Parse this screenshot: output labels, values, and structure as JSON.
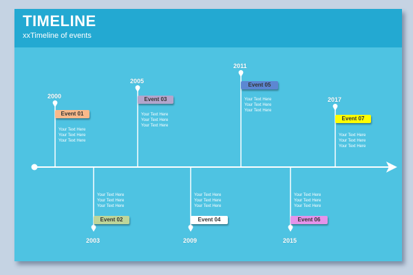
{
  "header": {
    "title": "TIMELINE",
    "subtitle": "xxTimeline of events"
  },
  "colors": {
    "slide_bg": "#4ec3e2",
    "header_bg": "#23a9d2",
    "page_bg": "#c5d3e3",
    "line": "#ffffff"
  },
  "events": [
    {
      "year": "2000",
      "label": "Event 01",
      "color": "#f9b98a",
      "text": [
        "Your Text  Here",
        "Your Text  Here",
        "Your Text  Here"
      ]
    },
    {
      "year": "2003",
      "label": "Event 02",
      "color": "#bfd69a",
      "text": [
        "Your Text  Here",
        "Your Text  Here",
        "Your Text  Here"
      ]
    },
    {
      "year": "2005",
      "label": "Event 03",
      "color": "#b3a5cc",
      "text": [
        "Your Text  Here",
        "Your Text  Here",
        "Your Text  Here"
      ]
    },
    {
      "year": "2009",
      "label": "Event 04",
      "color": "#ffffff",
      "text": [
        "Your Text  Here",
        "Your Text  Here",
        "Your Text  Here"
      ]
    },
    {
      "year": "2011",
      "label": "Event 05",
      "color": "#5c87d2",
      "text": [
        "Your Text  Here",
        "Your Text  Here",
        "Your Text  Here"
      ]
    },
    {
      "year": "2015",
      "label": "Event 06",
      "color": "#e593ea",
      "text": [
        "Your Text  Here",
        "Your Text  Here",
        "Your Text  Here"
      ]
    },
    {
      "year": "2017",
      "label": "Event 07",
      "color": "#ffff00",
      "text": [
        "Your Text  Here",
        "Your Text  Here",
        "Your Text  Here"
      ]
    }
  ]
}
